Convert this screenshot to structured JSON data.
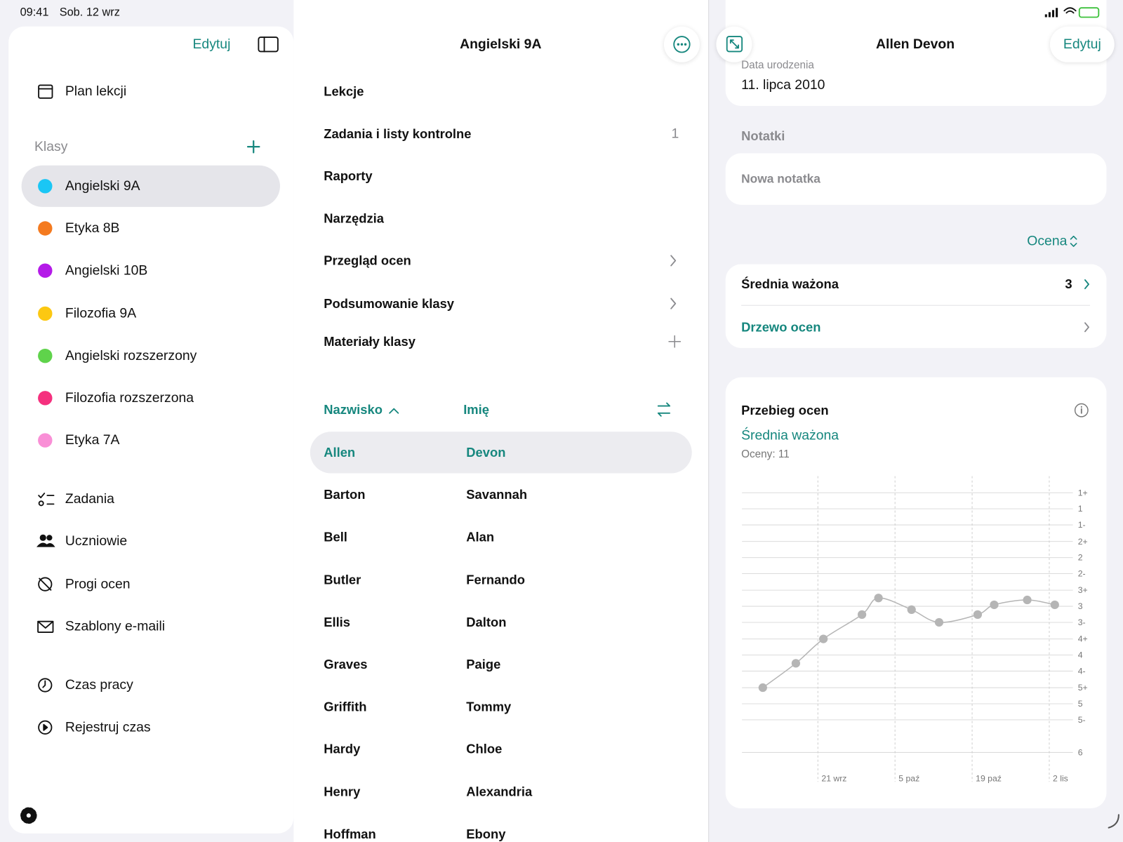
{
  "status": {
    "time": "09:41",
    "date": "Sob. 12 wrz"
  },
  "sidebar": {
    "edit": "Edytuj",
    "schedule": "Plan lekcji",
    "classes_title": "Klasy",
    "classes": [
      {
        "name": "Angielski 9A",
        "color": "#1ac6f5"
      },
      {
        "name": "Etyka 8B",
        "color": "#f47a1f"
      },
      {
        "name": "Angielski 10B",
        "color": "#b41ae8"
      },
      {
        "name": "Filozofia 9A",
        "color": "#fcc812"
      },
      {
        "name": "Angielski rozszerzony",
        "color": "#5fd34b"
      },
      {
        "name": "Filozofia rozszerzona",
        "color": "#f5307e"
      },
      {
        "name": "Etyka 7A",
        "color": "#f98fd6"
      }
    ],
    "selected": 0,
    "tools": [
      "Zadania",
      "Uczniowie",
      "Progi ocen",
      "Szablony e-maili"
    ],
    "time_tools": [
      "Czas pracy",
      "Rejestruj czas"
    ]
  },
  "middle": {
    "title": "Angielski 9A",
    "menu": [
      {
        "label": "Lekcje"
      },
      {
        "label": "Zadania i listy kontrolne",
        "count": 1
      },
      {
        "label": "Raporty"
      },
      {
        "label": "Narzędzia"
      },
      {
        "label": "Przegląd ocen",
        "accessory": "chevron"
      },
      {
        "label": "Podsumowanie klasy",
        "accessory": "chevron"
      },
      {
        "label": "Materiały klasy",
        "accessory": "plus"
      }
    ],
    "sort_last": "Nazwisko",
    "sort_first": "Imię",
    "students": [
      [
        "Allen",
        "Devon"
      ],
      [
        "Barton",
        "Savannah"
      ],
      [
        "Bell",
        "Alan"
      ],
      [
        "Butler",
        "Fernando"
      ],
      [
        "Ellis",
        "Dalton"
      ],
      [
        "Graves",
        "Paige"
      ],
      [
        "Griffith",
        "Tommy"
      ],
      [
        "Hardy",
        "Chloe"
      ],
      [
        "Henry",
        "Alexandria"
      ],
      [
        "Hoffman",
        "Ebony"
      ]
    ],
    "selected": 0
  },
  "detail": {
    "title": "Allen Devon",
    "edit": "Edytuj",
    "birth_label": "Data urodzenia",
    "birth": "11. lipca 2010",
    "notes_title": "Notatki",
    "note_placeholder": "Nowa notatka",
    "sort": "Ocena",
    "weighted_label": "Średnia ważona",
    "weighted_value": 3,
    "tree": "Drzewo ocen"
  },
  "chart_data": {
    "type": "line",
    "title": "Przebieg ocen",
    "subtitle": "Średnia ważona",
    "annotation": "Oceny: 11",
    "x": [
      11,
      17,
      22,
      29,
      32,
      38,
      43,
      50,
      53,
      59,
      64
    ],
    "values": [
      4.67,
      4.17,
      3.67,
      3.17,
      2.83,
      3.07,
      3.33,
      3.17,
      2.97,
      2.87,
      2.97
    ],
    "color": "#b5b5b5",
    "xlim": [
      7,
      68
    ],
    "xticks": [
      {
        "value": 21,
        "label": "21 wrz"
      },
      {
        "value": 35,
        "label": "5 paź"
      },
      {
        "value": 49,
        "label": "19 paź"
      },
      {
        "value": 63,
        "label": "2 lis"
      }
    ],
    "ylim": [
      0.5,
      6.2
    ],
    "y_inverted": true,
    "yticks": [
      {
        "value": 0.67,
        "label": "1+"
      },
      1,
      {
        "value": 1.33,
        "label": "1-"
      },
      {
        "value": 1.67,
        "label": "2+"
      },
      2,
      {
        "value": 2.33,
        "label": "2-"
      },
      {
        "value": 2.67,
        "label": "3+"
      },
      3,
      {
        "value": 3.33,
        "label": "3-"
      },
      {
        "value": 3.67,
        "label": "4+"
      },
      4,
      {
        "value": 4.33,
        "label": "4-"
      },
      {
        "value": 4.67,
        "label": "5+"
      },
      5,
      {
        "value": 5.33,
        "label": "5-"
      },
      6
    ],
    "grid": true
  }
}
